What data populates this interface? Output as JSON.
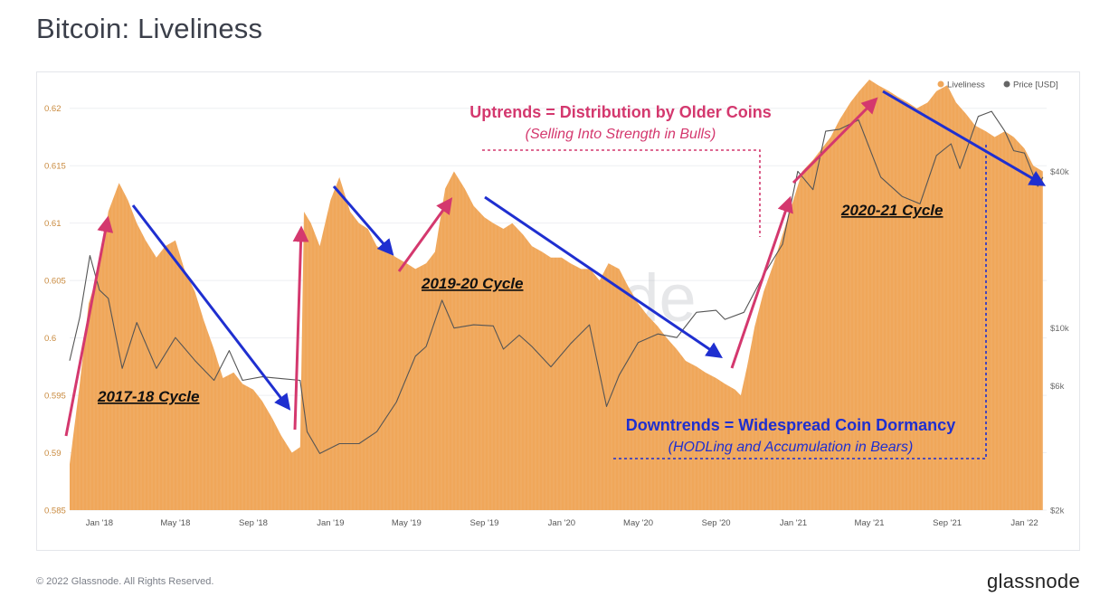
{
  "title": "Bitcoin: Liveliness",
  "footer": {
    "copyright": "© 2022 Glassnode. All Rights Reserved.",
    "brand": "glassnode",
    "watermark": "glassnode"
  },
  "colors": {
    "liveliness": "#f0a75a",
    "price": "#555555",
    "uptrend": "#d4386e",
    "downtrend": "#1f2fd0",
    "left_axis_text": "#c98a3e",
    "right_axis_text": "#6a6a6a"
  },
  "annotations": {
    "uptrend_title": "Uptrends = Distribution by Older Coins",
    "uptrend_subtitle": "(Selling Into Strength in Bulls)",
    "downtrend_title": "Downtrends = Widespread Coin Dormancy",
    "downtrend_subtitle": "(HODLing and Accumulation in Bears)",
    "cycles": [
      "2017-18 Cycle",
      "2019-20 Cycle",
      "2020-21 Cycle"
    ]
  },
  "chart_data": {
    "type": "area",
    "legend": {
      "position": "top-right",
      "entries": [
        {
          "name": "Liveliness",
          "color": "#f0a75a"
        },
        {
          "name": "Price [USD]",
          "color": "#666666"
        }
      ]
    },
    "x_ticks": [
      "Jan '18",
      "May '18",
      "Sep '18",
      "Jan '19",
      "May '19",
      "Sep '19",
      "Jan '20",
      "May '20",
      "Sep '20",
      "Jan '21",
      "May '21",
      "Sep '21",
      "Jan '22"
    ],
    "x_range": [
      "2017-11-15",
      "2022-02-05"
    ],
    "y_left": {
      "label": "",
      "ticks": [
        "0.62",
        "0.615",
        "0.61",
        "0.605",
        "0.6",
        "0.595",
        "0.59",
        "0.585"
      ],
      "range": [
        0.585,
        0.6225
      ]
    },
    "y_right": {
      "label": "",
      "scale": "log",
      "ticks": [
        "$40k",
        "$10k",
        "$6k",
        "$2k"
      ],
      "range": [
        2000,
        90000
      ]
    },
    "series": [
      {
        "name": "Liveliness",
        "axis": "left",
        "points": [
          [
            "2017-11-15",
            0.589
          ],
          [
            "2017-12-01",
            0.596
          ],
          [
            "2017-12-15",
            0.603
          ],
          [
            "2018-01-01",
            0.606
          ],
          [
            "2018-01-15",
            0.611
          ],
          [
            "2018-02-01",
            0.6135
          ],
          [
            "2018-02-15",
            0.612
          ],
          [
            "2018-03-01",
            0.61
          ],
          [
            "2018-03-15",
            0.6085
          ],
          [
            "2018-04-01",
            0.607
          ],
          [
            "2018-04-15",
            0.608
          ],
          [
            "2018-05-01",
            0.6085
          ],
          [
            "2018-05-15",
            0.606
          ],
          [
            "2018-06-01",
            0.604
          ],
          [
            "2018-06-15",
            0.6015
          ],
          [
            "2018-07-01",
            0.599
          ],
          [
            "2018-07-15",
            0.5965
          ],
          [
            "2018-08-01",
            0.597
          ],
          [
            "2018-08-15",
            0.596
          ],
          [
            "2018-09-01",
            0.5955
          ],
          [
            "2018-09-15",
            0.5945
          ],
          [
            "2018-10-01",
            0.593
          ],
          [
            "2018-10-15",
            0.5915
          ],
          [
            "2018-11-01",
            0.59
          ],
          [
            "2018-11-14",
            0.5905
          ],
          [
            "2018-11-20",
            0.611
          ],
          [
            "2018-12-01",
            0.61
          ],
          [
            "2018-12-15",
            0.608
          ],
          [
            "2019-01-01",
            0.612
          ],
          [
            "2019-01-15",
            0.614
          ],
          [
            "2019-02-01",
            0.611
          ],
          [
            "2019-02-15",
            0.61
          ],
          [
            "2019-03-01",
            0.6095
          ],
          [
            "2019-03-15",
            0.608
          ],
          [
            "2019-04-01",
            0.6075
          ],
          [
            "2019-04-15",
            0.607
          ],
          [
            "2019-05-01",
            0.6065
          ],
          [
            "2019-05-15",
            0.606
          ],
          [
            "2019-06-01",
            0.6065
          ],
          [
            "2019-06-15",
            0.6075
          ],
          [
            "2019-07-01",
            0.613
          ],
          [
            "2019-07-15",
            0.6145
          ],
          [
            "2019-08-01",
            0.613
          ],
          [
            "2019-08-15",
            0.6115
          ],
          [
            "2019-09-01",
            0.6105
          ],
          [
            "2019-09-15",
            0.61
          ],
          [
            "2019-10-01",
            0.6095
          ],
          [
            "2019-10-15",
            0.61
          ],
          [
            "2019-11-01",
            0.609
          ],
          [
            "2019-11-15",
            0.608
          ],
          [
            "2019-12-01",
            0.6075
          ],
          [
            "2019-12-15",
            0.607
          ],
          [
            "2020-01-01",
            0.607
          ],
          [
            "2020-01-15",
            0.6065
          ],
          [
            "2020-02-01",
            0.606
          ],
          [
            "2020-02-15",
            0.606
          ],
          [
            "2020-03-01",
            0.605
          ],
          [
            "2020-03-15",
            0.6065
          ],
          [
            "2020-04-01",
            0.606
          ],
          [
            "2020-04-15",
            0.6045
          ],
          [
            "2020-05-01",
            0.603
          ],
          [
            "2020-05-15",
            0.602
          ],
          [
            "2020-06-01",
            0.601
          ],
          [
            "2020-06-15",
            0.6
          ],
          [
            "2020-07-01",
            0.599
          ],
          [
            "2020-07-15",
            0.598
          ],
          [
            "2020-08-01",
            0.5975
          ],
          [
            "2020-08-15",
            0.597
          ],
          [
            "2020-09-01",
            0.5965
          ],
          [
            "2020-09-15",
            0.596
          ],
          [
            "2020-10-01",
            0.5955
          ],
          [
            "2020-10-10",
            0.595
          ],
          [
            "2020-10-20",
            0.5975
          ],
          [
            "2020-11-01",
            0.601
          ],
          [
            "2020-11-15",
            0.604
          ],
          [
            "2020-12-01",
            0.6065
          ],
          [
            "2020-12-15",
            0.609
          ],
          [
            "2021-01-01",
            0.612
          ],
          [
            "2021-01-15",
            0.6145
          ],
          [
            "2021-02-01",
            0.6155
          ],
          [
            "2021-02-15",
            0.6165
          ],
          [
            "2021-03-01",
            0.6175
          ],
          [
            "2021-03-15",
            0.619
          ],
          [
            "2021-04-01",
            0.6205
          ],
          [
            "2021-04-15",
            0.6215
          ],
          [
            "2021-05-01",
            0.6225
          ],
          [
            "2021-05-15",
            0.622
          ],
          [
            "2021-06-01",
            0.6215
          ],
          [
            "2021-06-15",
            0.621
          ],
          [
            "2021-07-01",
            0.6205
          ],
          [
            "2021-07-15",
            0.62
          ],
          [
            "2021-08-01",
            0.6205
          ],
          [
            "2021-08-15",
            0.6215
          ],
          [
            "2021-09-01",
            0.622
          ],
          [
            "2021-09-15",
            0.6205
          ],
          [
            "2021-10-01",
            0.6195
          ],
          [
            "2021-10-15",
            0.6185
          ],
          [
            "2021-11-01",
            0.618
          ],
          [
            "2021-11-15",
            0.6175
          ],
          [
            "2021-12-01",
            0.618
          ],
          [
            "2021-12-15",
            0.6175
          ],
          [
            "2022-01-01",
            0.6165
          ],
          [
            "2022-01-15",
            0.615
          ],
          [
            "2022-01-30",
            0.6145
          ]
        ]
      },
      {
        "name": "Price [USD]",
        "axis": "right",
        "points": [
          [
            "2017-11-15",
            7500
          ],
          [
            "2017-12-01",
            11000
          ],
          [
            "2017-12-17",
            19000
          ],
          [
            "2018-01-01",
            14000
          ],
          [
            "2018-01-15",
            13000
          ],
          [
            "2018-02-06",
            7000
          ],
          [
            "2018-03-01",
            10500
          ],
          [
            "2018-04-01",
            7000
          ],
          [
            "2018-05-01",
            9200
          ],
          [
            "2018-06-01",
            7500
          ],
          [
            "2018-07-01",
            6300
          ],
          [
            "2018-07-25",
            8200
          ],
          [
            "2018-08-15",
            6300
          ],
          [
            "2018-09-15",
            6500
          ],
          [
            "2018-10-15",
            6400
          ],
          [
            "2018-11-14",
            6300
          ],
          [
            "2018-11-25",
            4000
          ],
          [
            "2018-12-15",
            3300
          ],
          [
            "2019-01-15",
            3600
          ],
          [
            "2019-02-15",
            3600
          ],
          [
            "2019-03-15",
            4000
          ],
          [
            "2019-04-15",
            5200
          ],
          [
            "2019-05-15",
            7800
          ],
          [
            "2019-06-01",
            8500
          ],
          [
            "2019-06-26",
            12800
          ],
          [
            "2019-07-15",
            10000
          ],
          [
            "2019-08-15",
            10300
          ],
          [
            "2019-09-15",
            10200
          ],
          [
            "2019-10-01",
            8300
          ],
          [
            "2019-10-26",
            9400
          ],
          [
            "2019-11-15",
            8500
          ],
          [
            "2019-12-15",
            7100
          ],
          [
            "2020-01-15",
            8700
          ],
          [
            "2020-02-14",
            10300
          ],
          [
            "2020-03-12",
            5000
          ],
          [
            "2020-04-01",
            6600
          ],
          [
            "2020-05-01",
            8800
          ],
          [
            "2020-06-01",
            9500
          ],
          [
            "2020-07-01",
            9200
          ],
          [
            "2020-08-01",
            11500
          ],
          [
            "2020-09-01",
            11700
          ],
          [
            "2020-09-15",
            10800
          ],
          [
            "2020-10-15",
            11500
          ],
          [
            "2020-11-15",
            16000
          ],
          [
            "2020-12-15",
            21000
          ],
          [
            "2021-01-08",
            40000
          ],
          [
            "2021-02-01",
            34000
          ],
          [
            "2021-02-21",
            57000
          ],
          [
            "2021-03-15",
            58000
          ],
          [
            "2021-04-14",
            63000
          ],
          [
            "2021-05-19",
            38000
          ],
          [
            "2021-06-22",
            32000
          ],
          [
            "2021-07-20",
            30000
          ],
          [
            "2021-08-15",
            46000
          ],
          [
            "2021-09-07",
            51000
          ],
          [
            "2021-09-21",
            41000
          ],
          [
            "2021-10-20",
            65000
          ],
          [
            "2021-11-10",
            68000
          ],
          [
            "2021-12-01",
            57000
          ],
          [
            "2021-12-15",
            48000
          ],
          [
            "2022-01-01",
            47000
          ],
          [
            "2022-01-22",
            35000
          ],
          [
            "2022-01-30",
            38000
          ]
        ]
      }
    ]
  }
}
